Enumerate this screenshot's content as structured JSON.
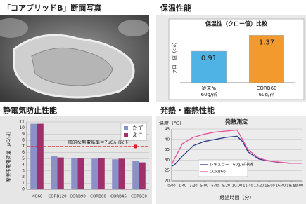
{
  "photo": {
    "title": "「コアブリッドB」断面写真"
  },
  "chart_data": [
    {
      "type": "bar",
      "heading": "保温性能",
      "title": "保温性（クロー値）比較",
      "y_label": "クロー値（clo）",
      "categories": [
        [
          "従来品",
          "60g/㎡"
        ],
        [
          "CORB60",
          "60g/㎡"
        ]
      ],
      "values": [
        0.91,
        1.37
      ],
      "colors": [
        "#4fb3e6",
        "#f29a2e"
      ],
      "ylim": [
        0,
        1.5
      ]
    },
    {
      "type": "bar",
      "heading": "静電気防止性能",
      "y_label": "摩擦帯電電荷量［μC/㎡］",
      "categories": [
        "MO60",
        "CORB120",
        "CORB90",
        "CORB60",
        "CORB45",
        "CORB30"
      ],
      "series": [
        {
          "name": "たて",
          "color": "#8c90c8",
          "values": [
            10.7,
            5.5,
            5.1,
            5.0,
            4.9,
            4.6
          ]
        },
        {
          "name": "よこ",
          "color": "#a0306b",
          "values": [
            10.7,
            5.2,
            5.1,
            5.1,
            5.0,
            4.4
          ]
        }
      ],
      "ylim": [
        0,
        11
      ],
      "yticks": [
        0,
        1,
        2,
        3,
        4,
        5,
        6,
        7,
        8,
        9,
        10,
        11
      ],
      "grid": true,
      "legend": "upper right",
      "reference_line": {
        "value": 7,
        "label": "一般的な制電基準＝7μC/㎡以下",
        "color": "#e0201c"
      }
    },
    {
      "type": "line",
      "heading": "発熱・蓄熱性能",
      "title": "発熱測定",
      "y_label": "温度（℃）",
      "x_label": "経過時間（分）",
      "x": [
        0,
        30,
        100,
        200,
        300,
        400,
        500,
        600,
        650,
        700,
        800,
        900,
        1000,
        1100,
        1200
      ],
      "series": [
        {
          "name": "レギュラー　60g/㎡中綿",
          "color": "#2b3a8f",
          "values": [
            27,
            28,
            32,
            37,
            39,
            40,
            41,
            41.5,
            39,
            34,
            30.5,
            29.5,
            28.8,
            28.5,
            28.5
          ]
        },
        {
          "name": "CORB60",
          "color": "#e8509a",
          "values": [
            28,
            31,
            38,
            41,
            42.5,
            43.5,
            44,
            44.5,
            40,
            35,
            31,
            29.5,
            29,
            28.5,
            28.5
          ]
        }
      ],
      "xlim": [
        0,
        1200
      ],
      "xticks": [
        {
          "value": 0,
          "label": "0:00"
        },
        {
          "value": 100,
          "label": "1:40"
        },
        {
          "value": 200,
          "label": "3:20"
        },
        {
          "value": 300,
          "label": "5:00"
        },
        {
          "value": 400,
          "label": "6:40"
        },
        {
          "value": 500,
          "label": "8:20"
        },
        {
          "value": 600,
          "label": "10:00"
        },
        {
          "value": 700,
          "label": "11:40"
        },
        {
          "value": 800,
          "label": "13:20"
        },
        {
          "value": 900,
          "label": "15:00"
        },
        {
          "value": 1000,
          "label": "16:40"
        },
        {
          "value": 1100,
          "label": "18:20"
        },
        {
          "value": 1200,
          "label": "20:00"
        }
      ],
      "ylim": [
        20,
        45
      ],
      "yticks": [
        20,
        25,
        30,
        35,
        40,
        45
      ],
      "grid": true,
      "legend": "lower center"
    }
  ]
}
